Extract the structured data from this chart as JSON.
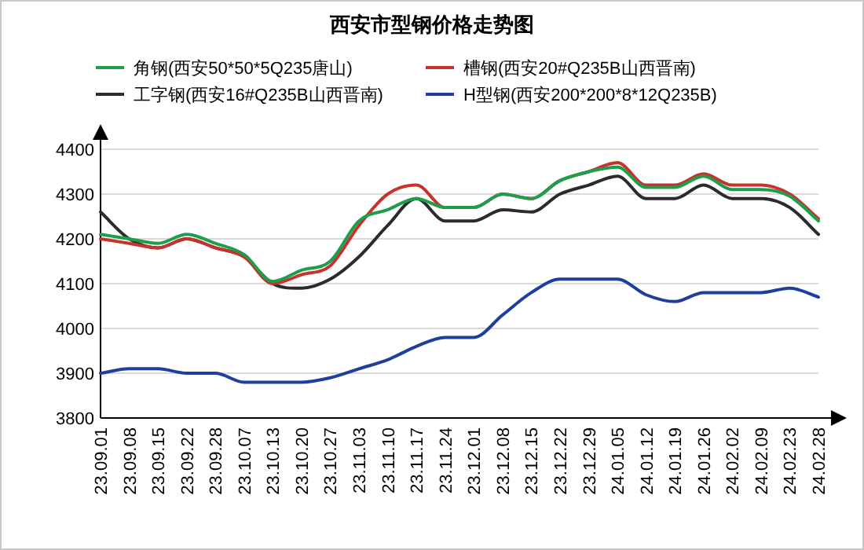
{
  "chart_data": {
    "type": "line",
    "title": "西安市型钢价格走势图",
    "categories": [
      "23.09.01",
      "23.09.08",
      "23.09.15",
      "23.09.22",
      "23.09.28",
      "23.10.07",
      "23.10.13",
      "23.10.20",
      "23.10.27",
      "23.11.03",
      "23.11.10",
      "23.11.17",
      "23.11.24",
      "23.12.01",
      "23.12.08",
      "23.12.15",
      "23.12.22",
      "23.12.29",
      "24.01.05",
      "24.01.12",
      "24.01.19",
      "24.01.26",
      "24.02.02",
      "24.02.09",
      "24.02.23",
      "24.02.28"
    ],
    "series": [
      {
        "name": "角钢(西安50*50*5Q235唐山)",
        "color": "#1e9e4a",
        "values": [
          4210,
          4200,
          4190,
          4210,
          4190,
          4165,
          4105,
          4130,
          4150,
          4240,
          4265,
          4290,
          4270,
          4270,
          4300,
          4290,
          4330,
          4350,
          4360,
          4315,
          4315,
          4340,
          4310,
          4310,
          4295,
          4240
        ]
      },
      {
        "name": "槽钢(西安20#Q235B山西晋南)",
        "color": "#c8322d",
        "values": [
          4200,
          4190,
          4180,
          4200,
          4180,
          4160,
          4100,
          4120,
          4140,
          4230,
          4300,
          4320,
          4270,
          4270,
          4300,
          4290,
          4330,
          4350,
          4370,
          4320,
          4320,
          4345,
          4320,
          4320,
          4300,
          4245
        ]
      },
      {
        "name": "工字钢(西安16#Q235B山西晋南)",
        "color": "#2b2b2b",
        "values": [
          4260,
          4200,
          4180,
          4200,
          4180,
          4160,
          4100,
          4090,
          4110,
          4160,
          4230,
          4290,
          4240,
          4240,
          4265,
          4260,
          4300,
          4320,
          4340,
          4290,
          4290,
          4320,
          4290,
          4290,
          4270,
          4210
        ]
      },
      {
        "name": "H型钢(西安200*200*8*12Q235B)",
        "color": "#1f3f9e",
        "values": [
          3900,
          3910,
          3910,
          3900,
          3900,
          3880,
          3880,
          3880,
          3890,
          3910,
          3930,
          3960,
          3980,
          3980,
          4030,
          4080,
          4110,
          4110,
          4110,
          4075,
          4060,
          4080,
          4080,
          4080,
          4090,
          4070
        ]
      }
    ],
    "ylim": [
      3800,
      4400
    ],
    "yticks": [
      3800,
      3900,
      4000,
      4100,
      4200,
      4300,
      4400
    ],
    "grid": "y",
    "legend": "top"
  }
}
